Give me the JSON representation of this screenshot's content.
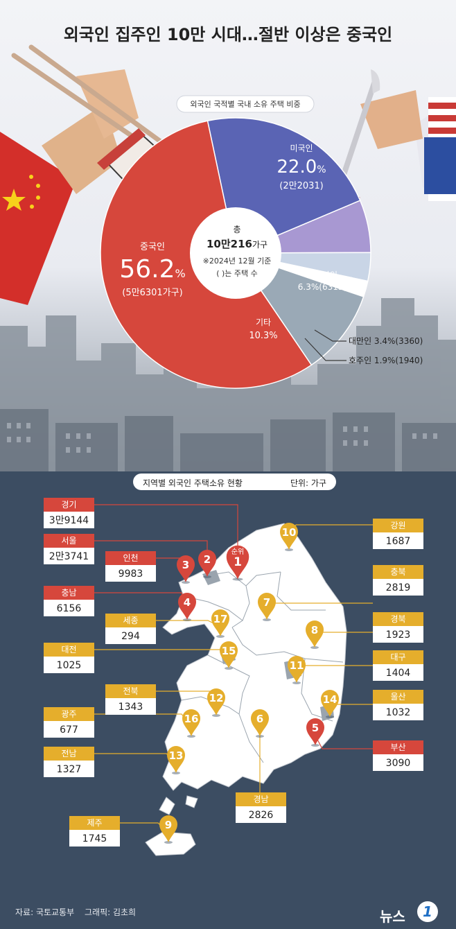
{
  "title": "외국인 집주인 10만 시대…절반 이상은 중국인",
  "donut": {
    "subtitle": "외국인 국적별 국내 소유 주택 비중",
    "center_l1": "총",
    "center_total_a": "10만216",
    "center_total_b": "가구",
    "center_note1": "※2024년 12월 기준",
    "center_note2": "( )는 주택 수",
    "labels": {
      "china_name": "중국인",
      "china_pct": "56.2",
      "china_pct_sign": "%",
      "china_count": "(5만6301가구)",
      "us_name": "미국인",
      "us_pct": "22.0",
      "us_pct_sign": "%",
      "us_count": "(2만2031)",
      "ca_name": "캐나다인",
      "ca_text": "6.3%(6315)",
      "other_name": "기타",
      "other_pct": "10.3%",
      "tw_text": "대만인 3.4%(3360)",
      "au_text": "호주인 1.9%(1940)"
    }
  },
  "chart_data": [
    {
      "type": "pie",
      "title": "외국인 국적별 국내 소유 주택 비중",
      "total_label": "10만216가구",
      "note": "※2024년 12월 기준",
      "slices": [
        {
          "name": "중국인",
          "percent": 56.2,
          "count": "5만6301가구",
          "color": "#d6473c"
        },
        {
          "name": "미국인",
          "percent": 22.0,
          "count": "2만2031",
          "color": "#5a64b4"
        },
        {
          "name": "캐나다인",
          "percent": 6.3,
          "count": "6315",
          "color": "#a898d2"
        },
        {
          "name": "대만인",
          "percent": 3.4,
          "count": "3360",
          "color": "#c9d5e6"
        },
        {
          "name": "호주인",
          "percent": 1.9,
          "count": "1940",
          "color": "#ffffff"
        },
        {
          "name": "기타",
          "percent": 10.3,
          "color": "#9aa9b6"
        }
      ]
    },
    {
      "type": "table",
      "title": "지역별 외국인 주택소유 현황",
      "unit": "단위: 가구",
      "rows": [
        {
          "rank": 1,
          "region": "경기",
          "value": "3만9144"
        },
        {
          "rank": 2,
          "region": "서울",
          "value": "2만3741"
        },
        {
          "rank": 3,
          "region": "인천",
          "value": "9983"
        },
        {
          "rank": 4,
          "region": "충남",
          "value": "6156"
        },
        {
          "rank": 5,
          "region": "부산",
          "value": "3090"
        },
        {
          "rank": 6,
          "region": "경남",
          "value": "2826"
        },
        {
          "rank": 7,
          "region": "충북",
          "value": "2819"
        },
        {
          "rank": 8,
          "region": "경북",
          "value": "1923"
        },
        {
          "rank": 9,
          "region": "제주",
          "value": "1745"
        },
        {
          "rank": 10,
          "region": "강원",
          "value": "1687"
        },
        {
          "rank": 11,
          "region": "대구",
          "value": "1404"
        },
        {
          "rank": 12,
          "region": "전북",
          "value": "1343"
        },
        {
          "rank": 13,
          "region": "전남",
          "value": "1327"
        },
        {
          "rank": 14,
          "region": "울산",
          "value": "1032"
        },
        {
          "rank": 15,
          "region": "대전",
          "value": "1025"
        },
        {
          "rank": 16,
          "region": "광주",
          "value": "677"
        },
        {
          "rank": 17,
          "region": "세종",
          "value": "294"
        }
      ]
    }
  ],
  "map": {
    "header_title": "지역별 외국인 주택소유 현황",
    "header_unit": "단위: 가구",
    "rank_word": "순위",
    "top_color": "#d6473c",
    "other_color": "#e5ae2c"
  },
  "footer": {
    "source": "자료: 국토교통부",
    "graphic": "그래픽: 김초희",
    "logo_text": "뉴스",
    "logo_mark": "1"
  }
}
